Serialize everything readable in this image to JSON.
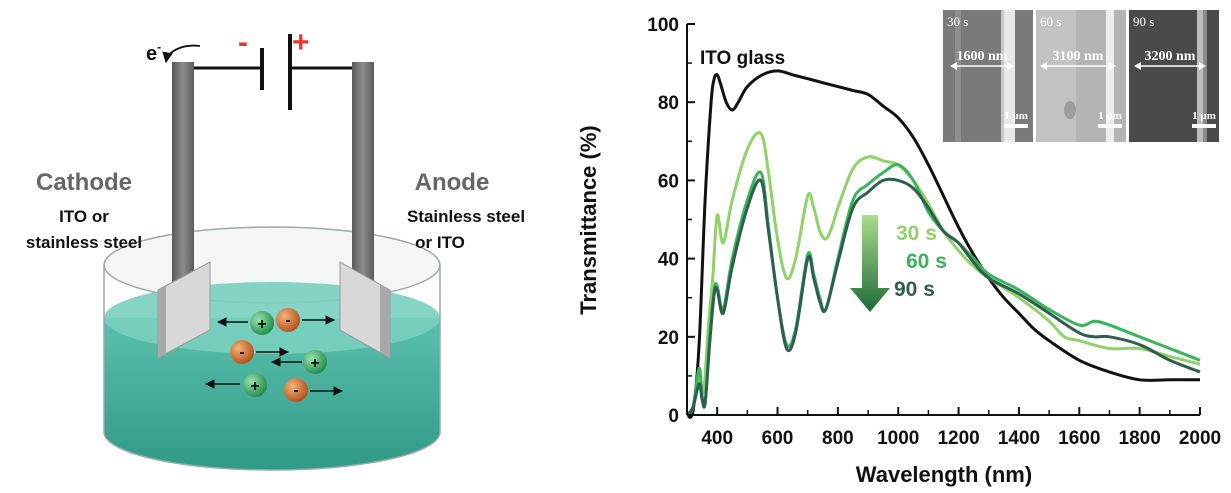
{
  "diagram": {
    "electron_label": "e",
    "electron_superscript": "-",
    "minus_sign": "-",
    "plus_sign": "+",
    "cathode_title": "Cathode",
    "cathode_material_line1": "ITO or",
    "cathode_material_line2": "stainless steel",
    "anode_title": "Anode",
    "anode_material_line1": "Stainless steel",
    "anode_material_line2": "or ITO",
    "cation_symbol": "+",
    "anion_symbol": "-",
    "colors": {
      "minus": "#e53935",
      "plus": "#e53935",
      "liquid": "#4fb8a6",
      "cation": "#2e9a55",
      "anion": "#c75a1e"
    }
  },
  "chart_data": {
    "type": "line",
    "xlabel": "Wavelength (nm)",
    "ylabel": "Transmittance (%)",
    "xlim": [
      300,
      2000
    ],
    "ylim": [
      0,
      100
    ],
    "xticks": [
      400,
      600,
      800,
      1000,
      1200,
      1400,
      1600,
      1800,
      2000
    ],
    "yticks": [
      0,
      20,
      40,
      60,
      80,
      100
    ],
    "grid": false,
    "annotation": "ITO glass",
    "legend": {
      "placement": "center",
      "items": [
        "30 s",
        "60 s",
        "90 s"
      ]
    },
    "series": [
      {
        "color": "#111111",
        "x": [
          300,
          320,
          340,
          360,
          380,
          390,
          400,
          410,
          430,
          450,
          470,
          500,
          550,
          600,
          650,
          700,
          750,
          800,
          850,
          900,
          950,
          1000,
          1050,
          1100,
          1150,
          1200,
          1250,
          1300,
          1350,
          1400,
          1450,
          1500,
          1600,
          1700,
          1800,
          1900,
          2000
        ],
        "y": [
          0,
          1,
          18,
          55,
          80,
          86,
          87,
          85,
          80,
          78,
          80,
          84,
          87,
          88,
          87,
          86,
          85,
          84,
          83,
          82,
          79,
          76,
          71,
          64,
          56,
          48,
          41,
          35,
          30,
          26,
          22,
          19,
          14,
          11,
          9,
          9,
          9
        ]
      },
      {
        "color": "#8fd268",
        "x": [
          300,
          320,
          340,
          355,
          370,
          385,
          400,
          420,
          450,
          500,
          545,
          570,
          600,
          630,
          660,
          700,
          720,
          740,
          760,
          780,
          800,
          850,
          900,
          950,
          1000,
          1050,
          1100,
          1150,
          1200,
          1250,
          1300,
          1400,
          1500,
          1550,
          1600,
          1700,
          1800,
          1900,
          2000
        ],
        "y": [
          0,
          2,
          10,
          6,
          22,
          35,
          51,
          44,
          55,
          68,
          72,
          62,
          45,
          35,
          40,
          56,
          53,
          47,
          45,
          48,
          53,
          63,
          66,
          65,
          64,
          60,
          54,
          47,
          42,
          38,
          35,
          30,
          24,
          20,
          19,
          17,
          17,
          15,
          13
        ]
      },
      {
        "color": "#38b558",
        "x": [
          300,
          320,
          340,
          350,
          360,
          375,
          390,
          400,
          420,
          450,
          500,
          545,
          570,
          600,
          630,
          660,
          700,
          720,
          740,
          760,
          800,
          850,
          900,
          950,
          1000,
          1050,
          1100,
          1150,
          1200,
          1250,
          1300,
          1400,
          1500,
          1600,
          1650,
          1700,
          1800,
          1900,
          2000
        ],
        "y": [
          0,
          2,
          12,
          5,
          3,
          20,
          32,
          33,
          27,
          40,
          55,
          62,
          48,
          30,
          18,
          22,
          41,
          36,
          30,
          27,
          40,
          55,
          59,
          62,
          64,
          60,
          52,
          47,
          44,
          40,
          36,
          32,
          27,
          23,
          24,
          23,
          20,
          17,
          14
        ]
      },
      {
        "color": "#2e5e4e",
        "x": [
          300,
          320,
          340,
          350,
          360,
          375,
          390,
          400,
          420,
          450,
          500,
          545,
          570,
          600,
          630,
          660,
          700,
          720,
          740,
          760,
          800,
          850,
          900,
          950,
          1000,
          1050,
          1100,
          1150,
          1200,
          1250,
          1300,
          1400,
          1500,
          1600,
          1650,
          1700,
          1800,
          1900,
          2000
        ],
        "y": [
          0,
          2,
          8,
          4,
          3,
          18,
          31,
          32,
          26,
          38,
          53,
          60,
          47,
          30,
          17,
          21,
          40,
          35,
          29,
          27,
          39,
          53,
          57,
          60,
          60,
          58,
          53,
          47,
          44,
          39,
          35,
          31,
          26,
          21,
          20,
          20,
          18,
          14,
          11
        ]
      }
    ]
  },
  "insets": [
    {
      "time": "30 s",
      "width_label": "1600 nm",
      "scale": "1 µm"
    },
    {
      "time": "60 s",
      "width_label": "3100 nm",
      "scale": "1 µm"
    },
    {
      "time": "90 s",
      "width_label": "3200 nm",
      "scale": "1 µm"
    }
  ]
}
